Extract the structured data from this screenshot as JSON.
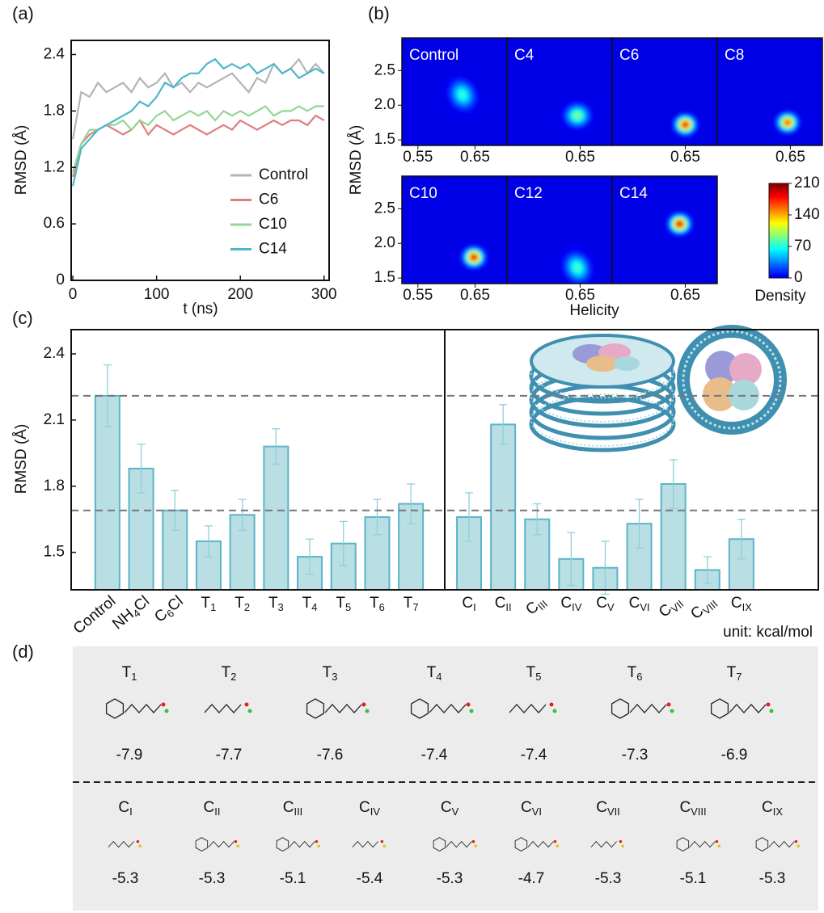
{
  "chart_data": [
    {
      "type": "line",
      "panel_label": "(a)",
      "xlabel": "t (ns)",
      "ylabel": "RMSD (Å)",
      "x": [
        0,
        10,
        20,
        30,
        40,
        50,
        60,
        70,
        80,
        90,
        100,
        110,
        120,
        130,
        140,
        150,
        160,
        170,
        180,
        190,
        200,
        210,
        220,
        230,
        240,
        250,
        260,
        270,
        280,
        290,
        300
      ],
      "xlim": [
        -2,
        306
      ],
      "xticks": [
        0,
        100,
        200,
        300
      ],
      "ylim": [
        0,
        2.55
      ],
      "yticks": [
        0,
        0.6,
        1.2,
        1.8,
        2.4
      ],
      "legend": "lower right",
      "series": [
        {
          "name": "Control",
          "color": "#b4b4b4",
          "values": [
            1.5,
            2.0,
            1.95,
            2.1,
            2.0,
            2.05,
            2.1,
            2.0,
            2.15,
            2.05,
            2.1,
            2.2,
            2.05,
            2.1,
            2.0,
            2.1,
            2.05,
            2.1,
            2.15,
            2.2,
            2.1,
            2.0,
            2.15,
            2.1,
            2.3,
            2.2,
            2.25,
            2.35,
            2.2,
            2.3,
            2.2
          ]
        },
        {
          "name": "C6",
          "color": "#e07d7d",
          "values": [
            1.1,
            1.45,
            1.55,
            1.6,
            1.65,
            1.6,
            1.55,
            1.6,
            1.7,
            1.55,
            1.65,
            1.6,
            1.55,
            1.6,
            1.65,
            1.6,
            1.55,
            1.6,
            1.65,
            1.6,
            1.7,
            1.65,
            1.6,
            1.65,
            1.7,
            1.65,
            1.7,
            1.7,
            1.65,
            1.75,
            1.7
          ]
        },
        {
          "name": "C10",
          "color": "#93d693",
          "values": [
            1.15,
            1.45,
            1.6,
            1.6,
            1.65,
            1.65,
            1.7,
            1.6,
            1.7,
            1.65,
            1.75,
            1.8,
            1.7,
            1.75,
            1.8,
            1.75,
            1.8,
            1.7,
            1.8,
            1.75,
            1.8,
            1.75,
            1.8,
            1.85,
            1.75,
            1.8,
            1.8,
            1.85,
            1.8,
            1.85,
            1.85
          ]
        },
        {
          "name": "C14",
          "color": "#4ab6cc",
          "values": [
            1.0,
            1.4,
            1.5,
            1.6,
            1.65,
            1.7,
            1.75,
            1.8,
            1.9,
            1.85,
            1.95,
            2.1,
            2.05,
            2.15,
            2.2,
            2.2,
            2.3,
            2.35,
            2.25,
            2.3,
            2.25,
            2.3,
            2.2,
            2.25,
            2.3,
            2.2,
            2.25,
            2.15,
            2.2,
            2.25,
            2.2
          ]
        }
      ]
    },
    {
      "type": "heatmap",
      "panel_label": "(b)",
      "xlabel": "Helicity",
      "ylabel": "RMSD (Å)",
      "colorbar_label": "Density",
      "colormap": "jet",
      "xlim": [
        0.522,
        0.706
      ],
      "xticks": [
        0.55,
        0.65
      ],
      "ylim": [
        1.42,
        2.97
      ],
      "yticks": [
        1.5,
        {
          "value": 2,
          "label": "2.0"
        },
        2.5
      ],
      "clim": [
        0,
        210
      ],
      "cticks": [
        0,
        70,
        140,
        210
      ],
      "panels": [
        {
          "name": "Control",
          "x": 0.628,
          "y": 2.15,
          "peak": 80
        },
        {
          "name": "C4",
          "x": 0.645,
          "y": 1.85,
          "peak": 100
        },
        {
          "name": "C6",
          "x": 0.65,
          "y": 1.72,
          "peak": 200
        },
        {
          "name": "C8",
          "x": 0.645,
          "y": 1.75,
          "peak": 180
        },
        {
          "name": "C10",
          "x": 0.648,
          "y": 1.8,
          "peak": 205
        },
        {
          "name": "C12",
          "x": 0.645,
          "y": 1.65,
          "peak": 85
        },
        {
          "name": "C14",
          "x": 0.64,
          "y": 2.28,
          "peak": 210
        }
      ]
    },
    {
      "type": "bar",
      "panel_label": "(c)",
      "ylabel": "RMSD (Å)",
      "ylim": [
        1.33,
        2.51
      ],
      "yticks": [
        1.5,
        1.8,
        2.1,
        2.4
      ],
      "color": "#b9dfe4",
      "edge_color": "#5ab4c9",
      "reference_lines": [
        2.21,
        1.69
      ],
      "groups": [
        {
          "categories": [
            "Control",
            "NH4Cl",
            "C6Cl",
            "T1",
            "T2",
            "T3",
            "T4",
            "T5",
            "T6",
            "T7"
          ],
          "values": [
            2.21,
            1.88,
            1.69,
            1.55,
            1.67,
            1.98,
            1.48,
            1.54,
            1.66,
            1.72
          ],
          "errors": [
            0.14,
            0.11,
            0.09,
            0.07,
            0.07,
            0.08,
            0.08,
            0.1,
            0.08,
            0.09
          ]
        },
        {
          "categories": [
            "CI",
            "CII",
            "CIII",
            "CIV",
            "CV",
            "CVI",
            "CVII",
            "CVIII",
            "CIX"
          ],
          "values": [
            1.66,
            2.08,
            1.65,
            1.47,
            1.43,
            1.63,
            1.81,
            1.42,
            1.56
          ],
          "errors": [
            0.11,
            0.09,
            0.07,
            0.12,
            0.12,
            0.11,
            0.11,
            0.06,
            0.09
          ]
        }
      ]
    },
    {
      "type": "table",
      "panel_label": "(d)",
      "unit": "unit: kcal/mol",
      "rows": [
        {
          "names": [
            "T1",
            "T2",
            "T3",
            "T4",
            "T5",
            "T6",
            "T7"
          ],
          "values": [
            -7.9,
            -7.7,
            -7.6,
            -7.4,
            -7.4,
            -7.3,
            -6.9
          ]
        },
        {
          "names": [
            "CI",
            "CII",
            "CIII",
            "CIV",
            "CV",
            "CVI",
            "CVII",
            "CVIII",
            "CIX"
          ],
          "values": [
            -5.3,
            -5.3,
            -5.1,
            -5.4,
            -5.3,
            -4.7,
            -5.3,
            -5.1,
            -5.3
          ]
        }
      ]
    }
  ]
}
